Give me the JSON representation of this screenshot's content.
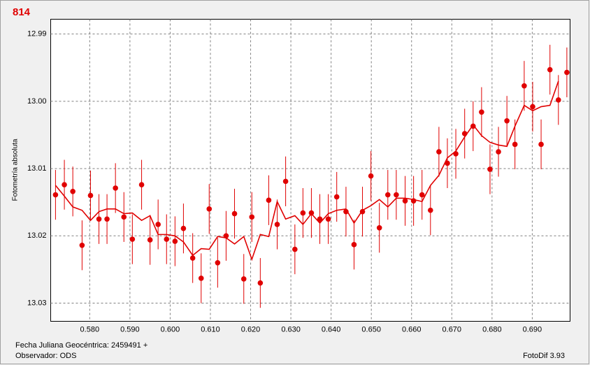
{
  "chart_data": {
    "type": "scatter",
    "title": "814",
    "ylabel": "Fotometría absoluta",
    "xlabel": "Fecha Juliana Geocéntrica: 2459491 +",
    "observer": "Observador: ODS",
    "software": "FotoDif 3.93",
    "x": [
      0.5715,
      0.5737,
      0.5758,
      0.5781,
      0.5802,
      0.5823,
      0.5843,
      0.5864,
      0.5885,
      0.5906,
      0.5929,
      0.595,
      0.597,
      0.5991,
      0.6012,
      0.6033,
      0.6056,
      0.6077,
      0.6097,
      0.6118,
      0.6139,
      0.616,
      0.6183,
      0.6203,
      0.6224,
      0.6245,
      0.6266,
      0.6287,
      0.631,
      0.633,
      0.6351,
      0.6372,
      0.6393,
      0.6414,
      0.6437,
      0.6457,
      0.6478,
      0.6499,
      0.652,
      0.6541,
      0.6562,
      0.6584,
      0.6605,
      0.6626,
      0.6647,
      0.6668,
      0.6689,
      0.671,
      0.6732,
      0.6753,
      0.6774,
      0.6795,
      0.6816,
      0.6837,
      0.6857,
      0.688,
      0.6901,
      0.6922,
      0.6944,
      0.6965,
      0.6986
    ],
    "series": [
      {
        "color": "#e00000",
        "values": [
          13.0139,
          13.0124,
          13.0134,
          13.0214,
          13.014,
          13.0175,
          13.0175,
          13.0129,
          13.0172,
          13.0205,
          13.0124,
          13.0206,
          13.0183,
          13.0205,
          13.0208,
          13.0189,
          13.0233,
          13.0263,
          13.016,
          13.024,
          13.02,
          13.0167,
          13.0264,
          13.0172,
          13.027,
          13.0147,
          13.0183,
          13.0119,
          13.022,
          13.0166,
          13.0166,
          13.0175,
          13.0175,
          13.0142,
          13.0164,
          13.0213,
          13.0164,
          13.0111,
          13.0188,
          13.0139,
          13.0139,
          13.0148,
          13.0148,
          13.0139,
          13.0162,
          13.0075,
          13.0092,
          13.0078,
          13.0048,
          13.0037,
          13.0016,
          13.0101,
          13.0075,
          13.0029,
          13.0064,
          12.9977,
          13.0008,
          13.0064,
          12.9953,
          12.9998,
          12.9957
        ],
        "errors": [
          0.0037,
          0.0037,
          0.0037,
          0.0037,
          0.0037,
          0.0037,
          0.0037,
          0.0037,
          0.0037,
          0.0037,
          0.0037,
          0.0037,
          0.0037,
          0.0037,
          0.0037,
          0.0037,
          0.0037,
          0.0037,
          0.0037,
          0.0037,
          0.0037,
          0.0037,
          0.0037,
          0.0037,
          0.0037,
          0.0037,
          0.0037,
          0.0037,
          0.0037,
          0.0037,
          0.0037,
          0.0037,
          0.0037,
          0.0037,
          0.0037,
          0.0037,
          0.0037,
          0.0037,
          0.0037,
          0.0037,
          0.0037,
          0.0037,
          0.0037,
          0.0037,
          0.0037,
          0.0037,
          0.0037,
          0.0037,
          0.0037,
          0.0037,
          0.0037,
          0.0037,
          0.0037,
          0.0037,
          0.0037,
          0.0037,
          0.0037,
          0.0037,
          0.0037,
          0.0037,
          0.0037
        ]
      },
      {
        "color": "#e00000",
        "type": "line",
        "values": [
          13.0125,
          13.0141,
          13.0157,
          13.0162,
          13.0177,
          13.0164,
          13.016,
          13.016,
          13.0167,
          13.0166,
          13.0177,
          13.017,
          13.0198,
          13.0198,
          13.02,
          13.0209,
          13.0229,
          13.0219,
          13.022,
          13.0201,
          13.0203,
          13.0212,
          13.0201,
          13.0235,
          13.0198,
          13.0201,
          13.0149,
          13.0175,
          13.017,
          13.0183,
          13.0167,
          13.0181,
          13.0167,
          13.0162,
          13.016,
          13.0181,
          13.0162,
          13.0155,
          13.0146,
          13.0157,
          13.0144,
          13.0144,
          13.0146,
          13.0149,
          13.0125,
          13.011,
          13.0084,
          13.0074,
          13.0053,
          13.0035,
          13.0051,
          13.0061,
          13.0065,
          13.0067,
          13.0037,
          13.0006,
          13.0014,
          13.0008,
          13.0006,
          12.997,
          null
        ]
      }
    ],
    "xlim": [
      0.5703,
      0.6994
    ],
    "ylim": [
      13.0327,
      12.9878
    ],
    "xticks": [
      {
        "value": 0.58,
        "label": "0.580"
      },
      {
        "value": 0.59,
        "label": "0.590"
      },
      {
        "value": 0.6,
        "label": "0.600"
      },
      {
        "value": 0.61,
        "label": "0.610"
      },
      {
        "value": 0.62,
        "label": "0.620"
      },
      {
        "value": 0.63,
        "label": "0.630"
      },
      {
        "value": 0.64,
        "label": "0.640"
      },
      {
        "value": 0.65,
        "label": "0.650"
      },
      {
        "value": 0.66,
        "label": "0.660"
      },
      {
        "value": 0.67,
        "label": "0.670"
      },
      {
        "value": 0.68,
        "label": "0.680"
      },
      {
        "value": 0.69,
        "label": "0.690"
      }
    ],
    "yticks": [
      12.99,
      {
        "value": 13.0,
        "label": "13.00"
      },
      13.01,
      13.02,
      13.03
    ],
    "grid": true
  }
}
